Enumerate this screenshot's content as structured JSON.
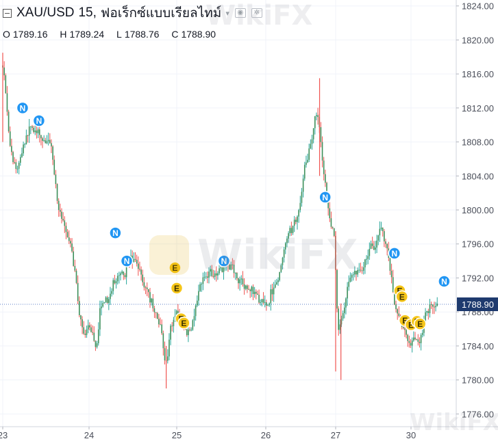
{
  "header": {
    "symbol": "XAU/USD",
    "interval": "15,",
    "source": "ฟอเร็กซ์แบบเรียลไทม์",
    "open_label": "O",
    "open": "1789.16",
    "high_label": "H",
    "high": "1789.24",
    "low_label": "L",
    "low": "1788.76",
    "close_label": "C",
    "close": "1788.90"
  },
  "watermark": "WikiFX",
  "colors": {
    "up": "#26a69a",
    "down": "#ef5350",
    "body": "#3c8f5a",
    "news": "#2196f3",
    "earnings": "#f5c518",
    "last_price": "#1e3a6e",
    "price_line": "#5b7cc7"
  },
  "chart_data": {
    "type": "candlestick",
    "instrument": "XAU/USD",
    "interval": "15",
    "x_tick_labels": [
      "23",
      "24",
      "25",
      "26",
      "27",
      "30"
    ],
    "y_ticks": [
      1776.0,
      1780.0,
      1784.0,
      1788.0,
      1792.0,
      1796.0,
      1800.0,
      1804.0,
      1808.0,
      1812.0,
      1816.0,
      1820.0,
      1824.0
    ],
    "y_tick_labels": [
      "1776.00",
      "1780.00",
      "1784.00",
      "1788.00",
      "1792.00",
      "1796.00",
      "1800.00",
      "1804.00",
      "1808.00",
      "1812.00",
      "1816.00",
      "1820.00",
      "1824.00"
    ],
    "ylim": [
      1774.5,
      1824.7
    ],
    "last_price": 1788.9,
    "last_price_label": "1788.90",
    "price_path": [
      {
        "d": 23.0,
        "p": 1817.0
      },
      {
        "d": 23.07,
        "p": 1808.0
      },
      {
        "d": 23.12,
        "p": 1804.0
      },
      {
        "d": 23.2,
        "p": 1806.5
      },
      {
        "d": 23.3,
        "p": 1810.0
      },
      {
        "d": 23.42,
        "p": 1808.5
      },
      {
        "d": 23.55,
        "p": 1808.0
      },
      {
        "d": 23.62,
        "p": 1801.0
      },
      {
        "d": 23.7,
        "p": 1797.5
      },
      {
        "d": 23.8,
        "p": 1794.5
      },
      {
        "d": 23.88,
        "p": 1787.0
      },
      {
        "d": 23.95,
        "p": 1785.0
      },
      {
        "d": 24.0,
        "p": 1786.0
      },
      {
        "d": 24.08,
        "p": 1783.8
      },
      {
        "d": 24.12,
        "p": 1790.0
      },
      {
        "d": 24.2,
        "p": 1789.0
      },
      {
        "d": 24.3,
        "p": 1792.0
      },
      {
        "d": 24.38,
        "p": 1792.5
      },
      {
        "d": 24.45,
        "p": 1794.5
      },
      {
        "d": 24.55,
        "p": 1793.0
      },
      {
        "d": 24.65,
        "p": 1790.5
      },
      {
        "d": 24.73,
        "p": 1788.0
      },
      {
        "d": 24.82,
        "p": 1786.0
      },
      {
        "d": 24.87,
        "p": 1781.0
      },
      {
        "d": 24.92,
        "p": 1786.5
      },
      {
        "d": 24.98,
        "p": 1788.0
      },
      {
        "d": 25.05,
        "p": 1787.0
      },
      {
        "d": 25.1,
        "p": 1785.0
      },
      {
        "d": 25.18,
        "p": 1787.5
      },
      {
        "d": 25.25,
        "p": 1791.0
      },
      {
        "d": 25.35,
        "p": 1793.0
      },
      {
        "d": 25.45,
        "p": 1793.0
      },
      {
        "d": 25.6,
        "p": 1794.0
      },
      {
        "d": 25.7,
        "p": 1791.5
      },
      {
        "d": 25.8,
        "p": 1790.5
      },
      {
        "d": 25.9,
        "p": 1789.5
      },
      {
        "d": 26.0,
        "p": 1789.0
      },
      {
        "d": 26.1,
        "p": 1791.0
      },
      {
        "d": 26.2,
        "p": 1793.0
      },
      {
        "d": 26.3,
        "p": 1797.5
      },
      {
        "d": 26.4,
        "p": 1798.5
      },
      {
        "d": 26.48,
        "p": 1801.0
      },
      {
        "d": 26.55,
        "p": 1806.0
      },
      {
        "d": 26.62,
        "p": 1808.0
      },
      {
        "d": 26.7,
        "p": 1811.0
      },
      {
        "d": 26.75,
        "p": 1810.5
      },
      {
        "d": 26.8,
        "p": 1805.0
      },
      {
        "d": 26.86,
        "p": 1801.0
      },
      {
        "d": 26.92,
        "p": 1798.0
      },
      {
        "d": 26.98,
        "p": 1796.0
      },
      {
        "d": 27.02,
        "p": 1784.0
      },
      {
        "d": 27.08,
        "p": 1787.5
      },
      {
        "d": 27.15,
        "p": 1791.0
      },
      {
        "d": 27.25,
        "p": 1793.0
      },
      {
        "d": 27.35,
        "p": 1793.5
      },
      {
        "d": 27.45,
        "p": 1795.5
      },
      {
        "d": 27.55,
        "p": 1797.0
      },
      {
        "d": 27.6,
        "p": 1798.5
      },
      {
        "d": 27.66,
        "p": 1796.0
      },
      {
        "d": 27.72,
        "p": 1792.5
      },
      {
        "d": 27.78,
        "p": 1788.0
      },
      {
        "d": 27.86,
        "p": 1786.0
      },
      {
        "d": 27.93,
        "p": 1785.0
      },
      {
        "d": 28.0,
        "p": 1784.0
      },
      {
        "d": 28.08,
        "p": 1784.5
      },
      {
        "d": 28.15,
        "p": 1786.0
      },
      {
        "d": 28.22,
        "p": 1789.0
      },
      {
        "d": 28.3,
        "p": 1789.0
      },
      {
        "d": 28.36,
        "p": 1789.0
      }
    ],
    "spikes": [
      {
        "d": 23.0,
        "high": 1818.5,
        "low": 1808.0
      },
      {
        "d": 24.88,
        "high": 1784.0,
        "low": 1779.0
      },
      {
        "d": 26.77,
        "high": 1815.5,
        "low": 1804.0
      },
      {
        "d": 27.0,
        "high": 1797.5,
        "low": 1781.0
      },
      {
        "d": 27.07,
        "high": 1789.0,
        "low": 1780.0
      }
    ],
    "events": [
      {
        "type": "N",
        "d": 23.23,
        "p": 1812.0
      },
      {
        "type": "N",
        "d": 23.42,
        "p": 1810.5
      },
      {
        "type": "N",
        "d": 24.3,
        "p": 1797.3
      },
      {
        "type": "N",
        "d": 24.43,
        "p": 1794.0
      },
      {
        "type": "N",
        "d": 25.53,
        "p": 1794.0
      },
      {
        "type": "N",
        "d": 26.85,
        "p": 1801.5
      },
      {
        "type": "N",
        "d": 27.78,
        "p": 1794.9
      },
      {
        "type": "N",
        "d": 28.44,
        "p": 1791.6
      },
      {
        "type": "E",
        "d": 24.98,
        "p": 1793.2
      },
      {
        "type": "E",
        "d": 25.0,
        "p": 1790.8
      },
      {
        "type": "E",
        "d": 25.05,
        "p": 1787.2
      },
      {
        "type": "E",
        "d": 25.08,
        "p": 1786.7
      },
      {
        "type": "E",
        "d": 27.85,
        "p": 1790.5
      },
      {
        "type": "E",
        "d": 27.88,
        "p": 1789.8
      },
      {
        "type": "E",
        "d": 27.92,
        "p": 1787.0
      },
      {
        "type": "E",
        "d": 28.0,
        "p": 1786.5
      },
      {
        "type": "E",
        "d": 28.08,
        "p": 1786.9
      },
      {
        "type": "E",
        "d": 28.12,
        "p": 1786.6
      }
    ]
  }
}
